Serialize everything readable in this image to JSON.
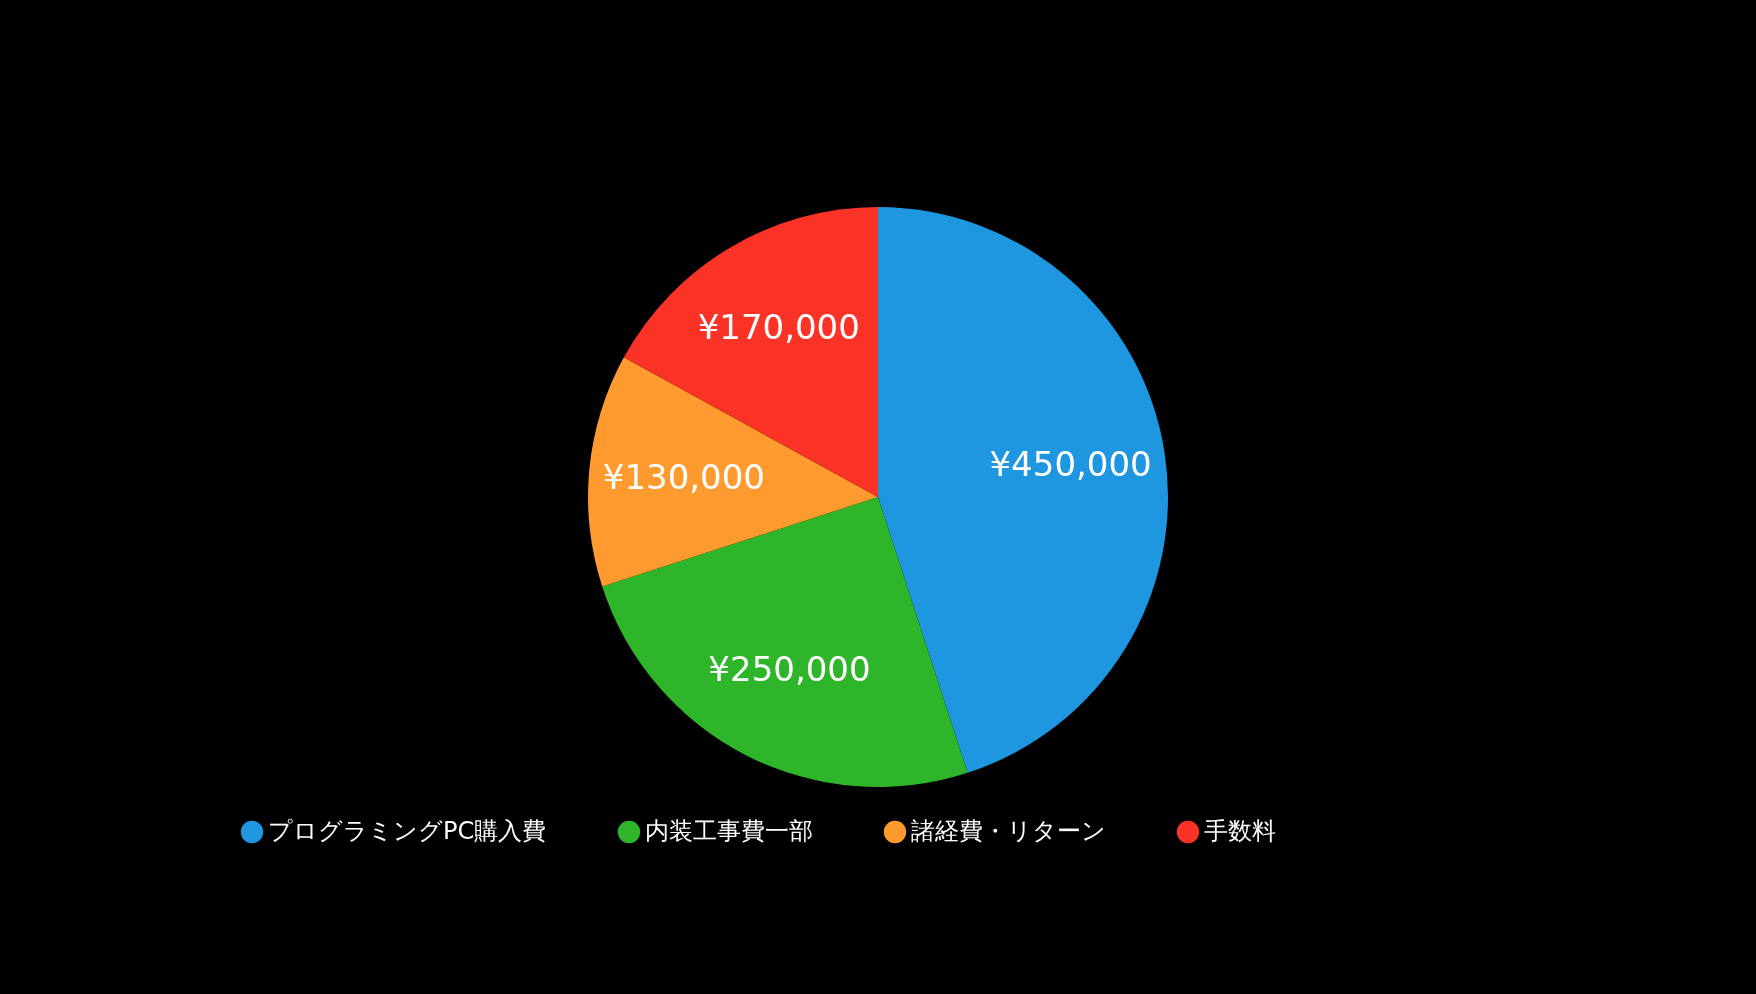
{
  "chart_data": {
    "type": "pie",
    "categories": [
      "プログラミングPC購入費",
      "内装工事費一部",
      "諸経費・リターン",
      "手数料"
    ],
    "values": [
      450000,
      250000,
      130000,
      170000
    ],
    "colors": [
      "#1e96e0",
      "#2eb52a",
      "#ff9a2e",
      "#fb3226"
    ],
    "value_labels": [
      "¥450,000",
      "¥250,000",
      "¥130,000",
      "¥170,000"
    ],
    "legend": "bottom"
  }
}
